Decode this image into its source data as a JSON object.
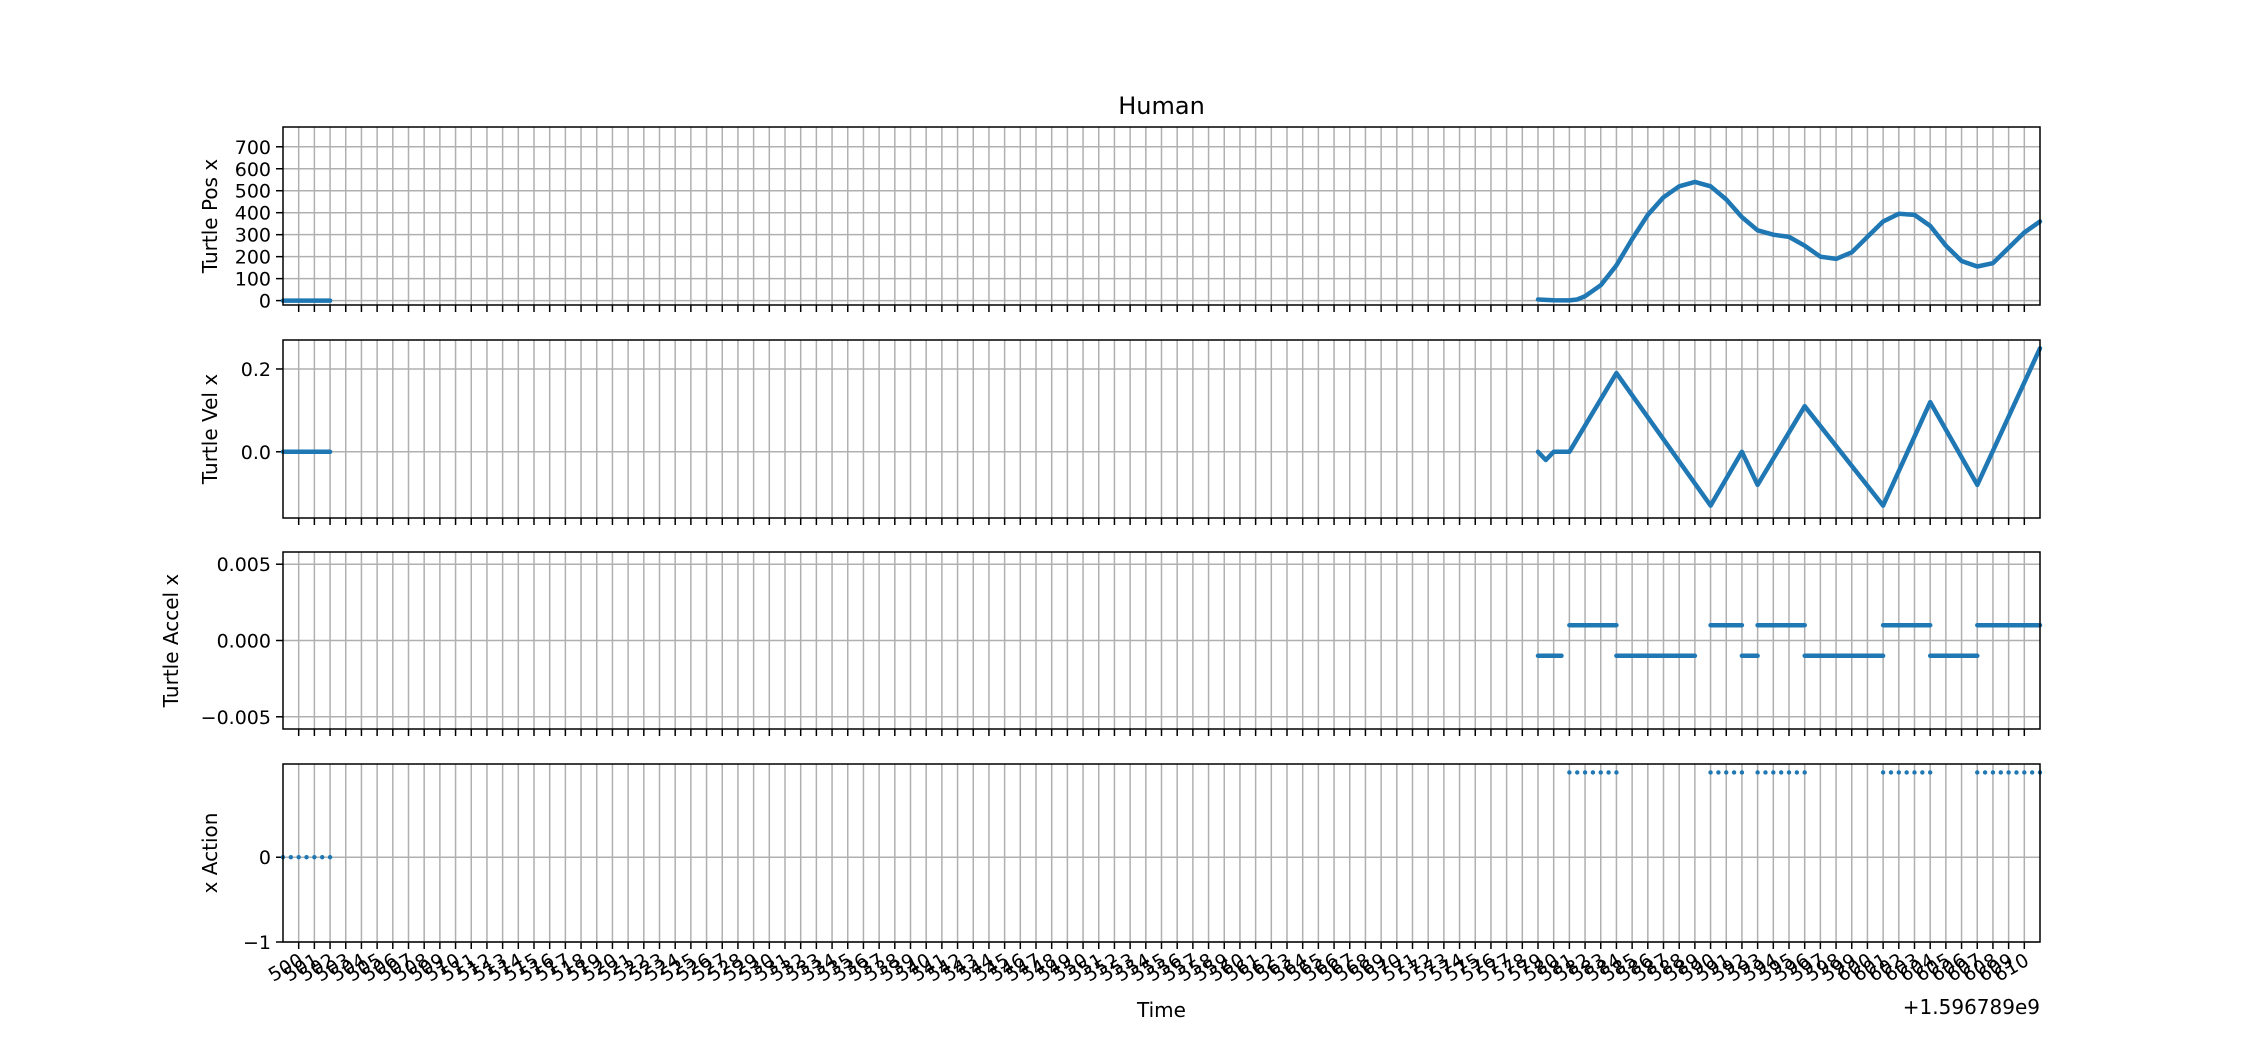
{
  "chart_data": {
    "type": "line",
    "title": "Human",
    "xlabel": "Time",
    "x_offset_label": "+1.596789e9",
    "xlim": [
      499,
      611
    ],
    "x_tick_step": 1,
    "x_tick_labels": [
      "500",
      "501",
      "502",
      "503",
      "504",
      "505",
      "506",
      "507",
      "508",
      "509",
      "510",
      "511",
      "512",
      "513",
      "514",
      "515",
      "516",
      "517",
      "518",
      "519",
      "520",
      "521",
      "522",
      "523",
      "524",
      "525",
      "526",
      "527",
      "528",
      "529",
      "530",
      "531",
      "532",
      "533",
      "534",
      "535",
      "536",
      "537",
      "538",
      "539",
      "540",
      "541",
      "542",
      "543",
      "544",
      "545",
      "546",
      "547",
      "548",
      "549",
      "550",
      "551",
      "552",
      "553",
      "554",
      "555",
      "556",
      "557",
      "558",
      "559",
      "560",
      "561",
      "562",
      "563",
      "564",
      "565",
      "566",
      "567",
      "568",
      "569",
      "570",
      "571",
      "572",
      "573",
      "574",
      "575",
      "576",
      "577",
      "578",
      "579",
      "580",
      "581",
      "582",
      "583",
      "584",
      "585",
      "586",
      "587",
      "588",
      "589",
      "590",
      "591",
      "592",
      "593",
      "594",
      "595",
      "596",
      "597",
      "598",
      "599",
      "600",
      "601",
      "602",
      "603",
      "604",
      "605",
      "606",
      "607",
      "608",
      "609",
      "610"
    ],
    "color": "#1f77b4",
    "panels": [
      {
        "ylabel": "Turtle Pos x",
        "ylim": [
          -20,
          790
        ],
        "yticks": [
          0,
          100,
          200,
          300,
          400,
          500,
          600,
          700
        ],
        "ytick_labels": [
          "0",
          "100",
          "200",
          "300",
          "400",
          "500",
          "600",
          "700"
        ],
        "style": "thick",
        "segments": [
          [
            [
              499,
              0
            ],
            [
              502,
              0
            ]
          ],
          [
            [
              579,
              5
            ],
            [
              580,
              2
            ],
            [
              581,
              1
            ],
            [
              581.5,
              5
            ],
            [
              582,
              20
            ],
            [
              583,
              70
            ],
            [
              584,
              160
            ],
            [
              585,
              280
            ],
            [
              586,
              390
            ],
            [
              587,
              470
            ],
            [
              588,
              520
            ],
            [
              589,
              540
            ],
            [
              590,
              520
            ],
            [
              591,
              460
            ],
            [
              592,
              380
            ],
            [
              593,
              320
            ],
            [
              594,
              300
            ],
            [
              595,
              290
            ],
            [
              596,
              250
            ],
            [
              597,
              200
            ],
            [
              598,
              190
            ],
            [
              599,
              220
            ],
            [
              600,
              290
            ],
            [
              601,
              360
            ],
            [
              602,
              395
            ],
            [
              603,
              390
            ],
            [
              604,
              340
            ],
            [
              605,
              250
            ],
            [
              606,
              180
            ],
            [
              607,
              155
            ],
            [
              608,
              170
            ],
            [
              609,
              240
            ],
            [
              610,
              310
            ],
            [
              611,
              360
            ]
          ]
        ]
      },
      {
        "ylabel": "Turtle Vel x",
        "ylim": [
          -0.16,
          0.27
        ],
        "yticks": [
          0.0,
          0.2
        ],
        "ytick_labels": [
          "0.0",
          "0.2"
        ],
        "style": "thick",
        "segments": [
          [
            [
              499,
              0
            ],
            [
              502,
              0
            ]
          ],
          [
            [
              579,
              0
            ],
            [
              579.5,
              -0.02
            ],
            [
              580,
              0
            ],
            [
              581,
              0
            ],
            [
              584,
              0.19
            ],
            [
              590,
              -0.13
            ],
            [
              592,
              0
            ],
            [
              593,
              -0.08
            ],
            [
              596,
              0.11
            ],
            [
              601,
              -0.13
            ],
            [
              604,
              0.12
            ],
            [
              607,
              -0.08
            ],
            [
              611,
              0.25
            ]
          ]
        ]
      },
      {
        "ylabel": "Turtle Accel x",
        "ylim": [
          -0.0058,
          0.0058
        ],
        "yticks": [
          0.005,
          0.0,
          -0.005
        ],
        "ytick_labels": [
          "0.005",
          "0.000",
          "−0.005"
        ],
        "style": "thick",
        "segments": [
          [
            [
              579,
              -0.001
            ],
            [
              580.5,
              -0.001
            ]
          ],
          [
            [
              581,
              0.001
            ],
            [
              584,
              0.001
            ]
          ],
          [
            [
              584,
              -0.001
            ],
            [
              589,
              -0.001
            ]
          ],
          [
            [
              590,
              0.001
            ],
            [
              592,
              0.001
            ]
          ],
          [
            [
              592,
              -0.001
            ],
            [
              593,
              -0.001
            ]
          ],
          [
            [
              593,
              0.001
            ],
            [
              596,
              0.001
            ]
          ],
          [
            [
              596,
              -0.001
            ],
            [
              601,
              -0.001
            ]
          ],
          [
            [
              601,
              0.001
            ],
            [
              604,
              0.001
            ]
          ],
          [
            [
              604,
              -0.001
            ],
            [
              607,
              -0.001
            ]
          ],
          [
            [
              607,
              0.001
            ],
            [
              611,
              0.001
            ]
          ]
        ]
      },
      {
        "ylabel": "x Action",
        "ylim": [
          -1,
          1.1
        ],
        "yticks": [
          0,
          -1
        ],
        "ytick_labels": [
          "0",
          "−1"
        ],
        "style": "dots",
        "segments": [
          [
            [
              499,
              0
            ],
            [
              499.5,
              0
            ],
            [
              500,
              0
            ],
            [
              500.5,
              0
            ],
            [
              501,
              0
            ],
            [
              501.5,
              0
            ],
            [
              502,
              0
            ]
          ],
          [
            [
              581,
              1
            ],
            [
              581.5,
              1
            ],
            [
              582,
              1
            ],
            [
              582.5,
              1
            ],
            [
              583,
              1
            ],
            [
              583.5,
              1
            ],
            [
              584,
              1
            ]
          ],
          [
            [
              590,
              1
            ],
            [
              590.5,
              1
            ],
            [
              591,
              1
            ],
            [
              591.5,
              1
            ],
            [
              592,
              1
            ]
          ],
          [
            [
              593,
              1
            ],
            [
              593.5,
              1
            ],
            [
              594,
              1
            ],
            [
              594.5,
              1
            ],
            [
              595,
              1
            ],
            [
              595.5,
              1
            ],
            [
              596,
              1
            ]
          ],
          [
            [
              601,
              1
            ],
            [
              601.5,
              1
            ],
            [
              602,
              1
            ],
            [
              602.5,
              1
            ],
            [
              603,
              1
            ],
            [
              603.5,
              1
            ],
            [
              604,
              1
            ]
          ],
          [
            [
              607,
              1
            ],
            [
              607.5,
              1
            ],
            [
              608,
              1
            ],
            [
              608.5,
              1
            ],
            [
              609,
              1
            ],
            [
              609.5,
              1
            ],
            [
              610,
              1
            ],
            [
              610.5,
              1
            ],
            [
              611,
              1
            ]
          ]
        ]
      }
    ]
  }
}
